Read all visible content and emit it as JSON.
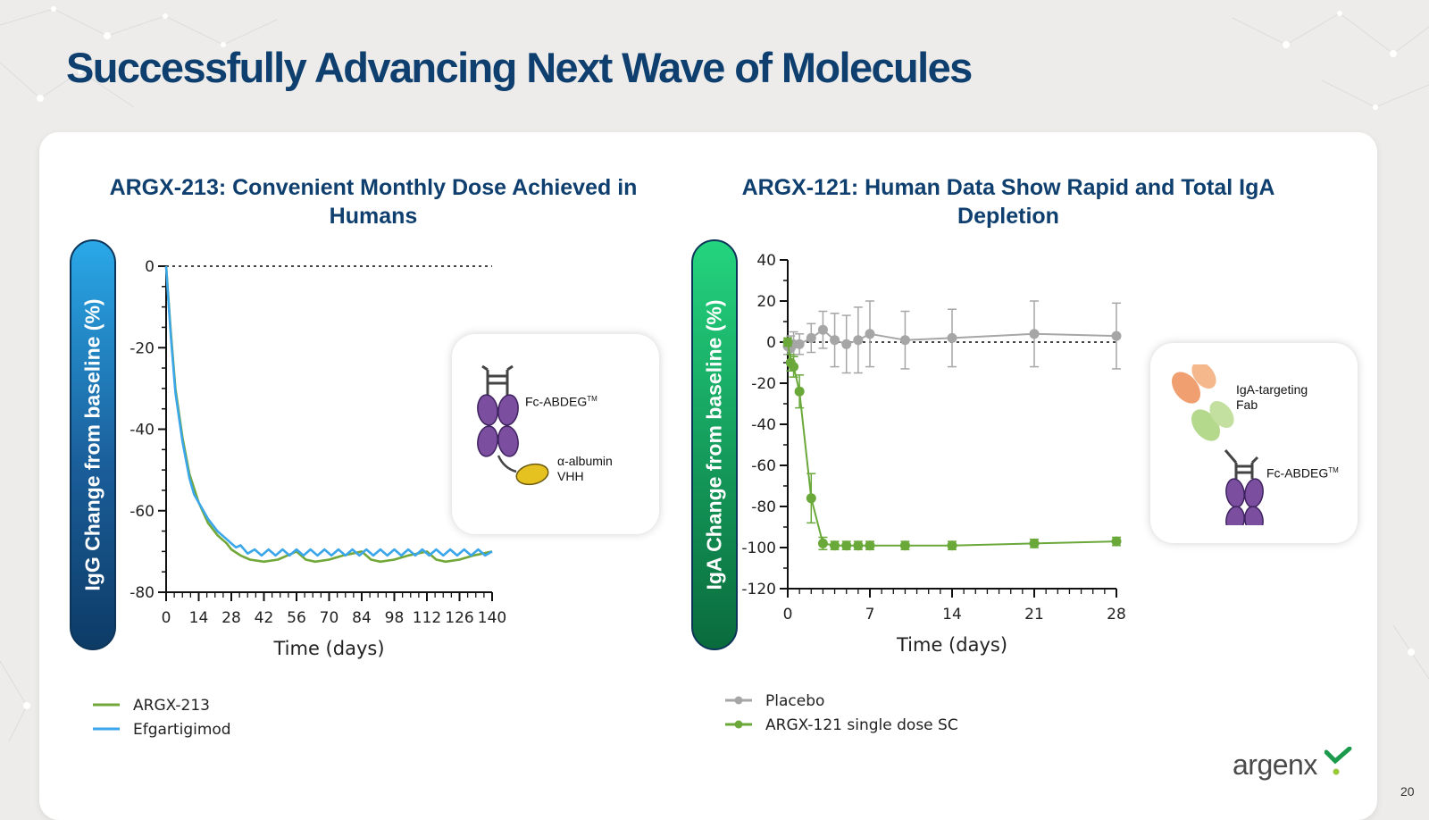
{
  "slide": {
    "title": "Successfully Advancing Next Wave of Molecules",
    "page_number": "20",
    "logo_text": "argenx"
  },
  "left_inset": {
    "fc_label": "Fc-ABDEG",
    "fc_sup": "TM",
    "albumin_label_line1": "α-albumin",
    "albumin_label_line2": "VHH"
  },
  "right_inset": {
    "fab_label_line1": "IgA-targeting",
    "fab_label_line2": "Fab",
    "fc_label": "Fc-ABDEG",
    "fc_sup": "TM"
  },
  "colors": {
    "title_navy": "#0e3f6e",
    "argx213_green": "#72a83a",
    "efgartigimod_blue": "#3ba6ea",
    "placebo_gray": "#a6a6a6",
    "argx121_green": "#6aa83a",
    "domain_purple": "#7b4e9f",
    "vhh_yellow": "#e6c220",
    "fab_orange": "#f0a070",
    "fab_green": "#b4d88c"
  },
  "chart_data": [
    {
      "type": "line",
      "title": "ARGX-213: Convenient Monthly Dose Achieved in Humans",
      "xlabel": "Time (days)",
      "ylabel": "IgG Change from baseline (%)",
      "xlim": [
        0,
        140
      ],
      "ylim": [
        -80,
        0
      ],
      "xticks": [
        "0",
        "14",
        "28",
        "42",
        "56",
        "70",
        "84",
        "98",
        "112",
        "126",
        "140"
      ],
      "yticks": [
        "0",
        "-20",
        "-40",
        "-60",
        "-80"
      ],
      "reference_line": 0,
      "legend_position": "bottom-left",
      "series": [
        {
          "name": "ARGX-213",
          "x": [
            0,
            2,
            4,
            7,
            10,
            14,
            18,
            22,
            26,
            28,
            32,
            36,
            42,
            48,
            52,
            56,
            60,
            64,
            70,
            76,
            80,
            84,
            88,
            92,
            98,
            104,
            108,
            112,
            116,
            120,
            126,
            132,
            136,
            140
          ],
          "y": [
            0,
            -16,
            -30,
            -42,
            -51,
            -58,
            -63,
            -66,
            -68,
            -69.5,
            -71,
            -72,
            -72.5,
            -72,
            -71,
            -70,
            -72,
            -72.5,
            -72,
            -71,
            -70.5,
            -70,
            -72,
            -72.5,
            -72,
            -71,
            -70.5,
            -70,
            -72,
            -72.5,
            -72,
            -71,
            -70.5,
            -70
          ]
        },
        {
          "name": "Efgartigimod",
          "x": [
            0,
            2,
            4,
            7,
            10,
            12,
            14,
            18,
            22,
            26,
            28,
            30,
            32,
            35,
            38,
            41,
            44,
            47,
            50,
            53,
            56,
            59,
            62,
            65,
            68,
            71,
            74,
            77,
            80,
            83,
            86,
            89,
            92,
            95,
            98,
            101,
            104,
            107,
            110,
            113,
            116,
            119,
            122,
            125,
            128,
            131,
            134,
            137,
            140
          ],
          "y": [
            0,
            -17,
            -31,
            -43,
            -52,
            -56,
            -58,
            -62,
            -65,
            -67,
            -68,
            -69,
            -68.5,
            -70.5,
            -69.5,
            -71,
            -69.5,
            -71,
            -69.5,
            -71,
            -69.5,
            -71,
            -69.5,
            -71,
            -69.5,
            -71,
            -69.5,
            -71,
            -69.5,
            -71,
            -69.5,
            -71,
            -69.5,
            -71,
            -69.5,
            -71,
            -69.5,
            -71,
            -69.5,
            -71,
            -69.5,
            -71,
            -69.5,
            -71,
            -69.5,
            -71,
            -69.5,
            -71,
            -70
          ]
        }
      ]
    },
    {
      "type": "line",
      "title": "ARGX-121: Human Data Show Rapid and Total IgA Depletion",
      "xlabel": "Time (days)",
      "ylabel": "IgA Change from baseline (%)",
      "xlim": [
        0,
        28
      ],
      "ylim": [
        -120,
        40
      ],
      "xticks": [
        "0",
        "7",
        "14",
        "21",
        "28"
      ],
      "yticks": [
        "40",
        "20",
        "0",
        "-20",
        "-40",
        "-60",
        "-80",
        "-100",
        "-120"
      ],
      "reference_line": 0,
      "legend_position": "bottom-left",
      "series": [
        {
          "name": "Placebo",
          "x": [
            0,
            0.25,
            0.5,
            1,
            2,
            3,
            4,
            5,
            6,
            7,
            10,
            14,
            21,
            28
          ],
          "y": [
            -2,
            -3,
            -1,
            -1,
            2,
            6,
            1,
            -1,
            1,
            4,
            1,
            2,
            4,
            3
          ],
          "err": [
            4,
            6,
            6,
            5,
            7,
            9,
            13,
            14,
            16,
            16,
            14,
            14,
            16,
            16
          ]
        },
        {
          "name": "ARGX-121 single dose SC",
          "x": [
            0,
            0.25,
            0.5,
            1,
            2,
            3,
            4,
            5,
            6,
            7,
            10,
            14,
            21,
            28
          ],
          "y": [
            0,
            -10,
            -12,
            -24,
            -76,
            -98,
            -99,
            -99,
            -99,
            -99,
            -99,
            -99,
            -98,
            -97
          ],
          "err": [
            2,
            4,
            5,
            8,
            12,
            3,
            2,
            2,
            2,
            2,
            2,
            2,
            2,
            2
          ]
        }
      ]
    }
  ]
}
